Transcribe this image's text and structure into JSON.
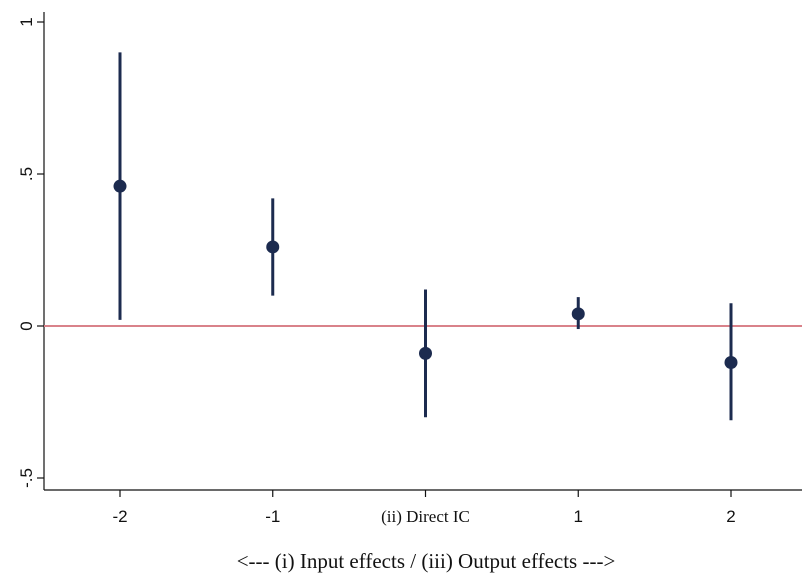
{
  "chart_data": {
    "type": "scatter",
    "title": "",
    "xlabel": "<--- (i) Input effects / (iii) Output effects --->",
    "ylabel": "",
    "x_ticks": [
      {
        "value": -2,
        "label": "-2",
        "serif": false
      },
      {
        "value": -1,
        "label": "-1",
        "serif": false
      },
      {
        "value": 0,
        "label": "(ii) Direct IC",
        "serif": true
      },
      {
        "value": 1,
        "label": "1",
        "serif": false
      },
      {
        "value": 2,
        "label": "2",
        "serif": false
      }
    ],
    "y_ticks": [
      {
        "value": 1,
        "label": "1"
      },
      {
        "value": 0.5,
        "label": ".5"
      },
      {
        "value": 0,
        "label": "0"
      },
      {
        "value": -0.5,
        "label": "-.5"
      }
    ],
    "xlim": [
      -2.5,
      2.5
    ],
    "ylim": [
      -0.55,
      1.0
    ],
    "reference_line": {
      "y": 0,
      "color": "#d9828a"
    },
    "grid": false,
    "marker_color": "#1c2b4f",
    "points": [
      {
        "x": -2,
        "y": 0.46,
        "ci_low": 0.02,
        "ci_high": 0.9
      },
      {
        "x": -1,
        "y": 0.26,
        "ci_low": 0.1,
        "ci_high": 0.42
      },
      {
        "x": 0,
        "y": -0.09,
        "ci_low": -0.3,
        "ci_high": 0.12
      },
      {
        "x": 1,
        "y": 0.04,
        "ci_low": -0.01,
        "ci_high": 0.095
      },
      {
        "x": 2,
        "y": -0.12,
        "ci_low": -0.31,
        "ci_high": 0.075
      }
    ]
  }
}
